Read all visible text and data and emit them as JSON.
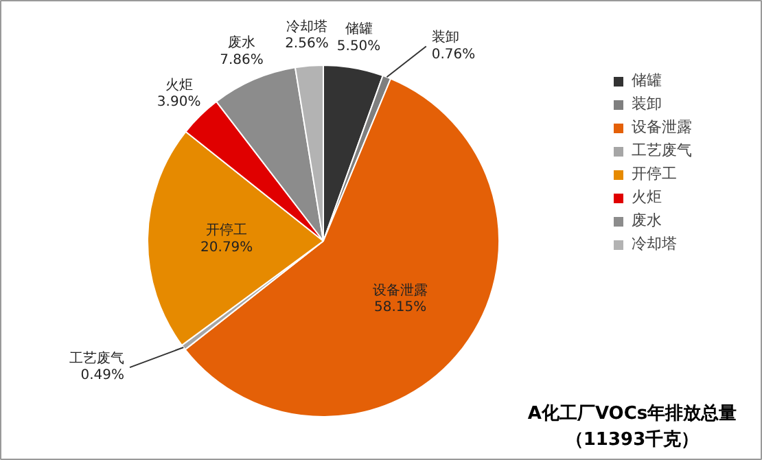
{
  "chart_data": {
    "type": "pie",
    "title": "A化工厂VOCs年排放总量",
    "subtitle": "（11393千克）",
    "categories": [
      "储罐",
      "装卸",
      "设备泄露",
      "工艺废气",
      "开停工",
      "火炬",
      "废水",
      "冷却塔"
    ],
    "values": [
      5.5,
      0.76,
      58.15,
      0.49,
      20.79,
      3.9,
      7.86,
      2.56
    ],
    "colors": [
      "#333333",
      "#7f7f7f",
      "#e46007",
      "#a6a6a6",
      "#e68a00",
      "#e00000",
      "#8c8c8c",
      "#b3b3b3"
    ],
    "value_labels": [
      "5.50%",
      "0.76%",
      "58.15%",
      "0.49%",
      "20.79%",
      "3.90%",
      "7.86%",
      "2.56%"
    ],
    "legend": "right"
  }
}
